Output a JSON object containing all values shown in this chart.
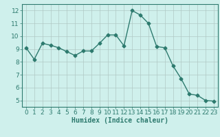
{
  "x": [
    0,
    1,
    2,
    3,
    4,
    5,
    6,
    7,
    8,
    9,
    10,
    11,
    12,
    13,
    14,
    15,
    16,
    17,
    18,
    19,
    20,
    21,
    22,
    23
  ],
  "y": [
    9.1,
    8.2,
    9.45,
    9.3,
    9.1,
    8.8,
    8.5,
    8.85,
    8.85,
    9.45,
    10.1,
    10.1,
    9.25,
    12.0,
    11.65,
    11.0,
    9.2,
    9.1,
    7.7,
    6.7,
    5.5,
    5.4,
    5.0,
    4.95
  ],
  "line_color": "#2d7a6e",
  "marker": "D",
  "marker_size": 2.5,
  "line_width": 1.0,
  "bg_color": "#cff0ec",
  "grid_color": "#b0c8c4",
  "xlabel": "Humidex (Indice chaleur)",
  "xlabel_fontsize": 7,
  "tick_fontsize": 6.5,
  "xlim": [
    -0.5,
    23.5
  ],
  "ylim": [
    4.5,
    12.5
  ],
  "yticks": [
    5,
    6,
    7,
    8,
    9,
    10,
    11,
    12
  ],
  "xticks": [
    0,
    1,
    2,
    3,
    4,
    5,
    6,
    7,
    8,
    9,
    10,
    11,
    12,
    13,
    14,
    15,
    16,
    17,
    18,
    19,
    20,
    21,
    22,
    23
  ]
}
